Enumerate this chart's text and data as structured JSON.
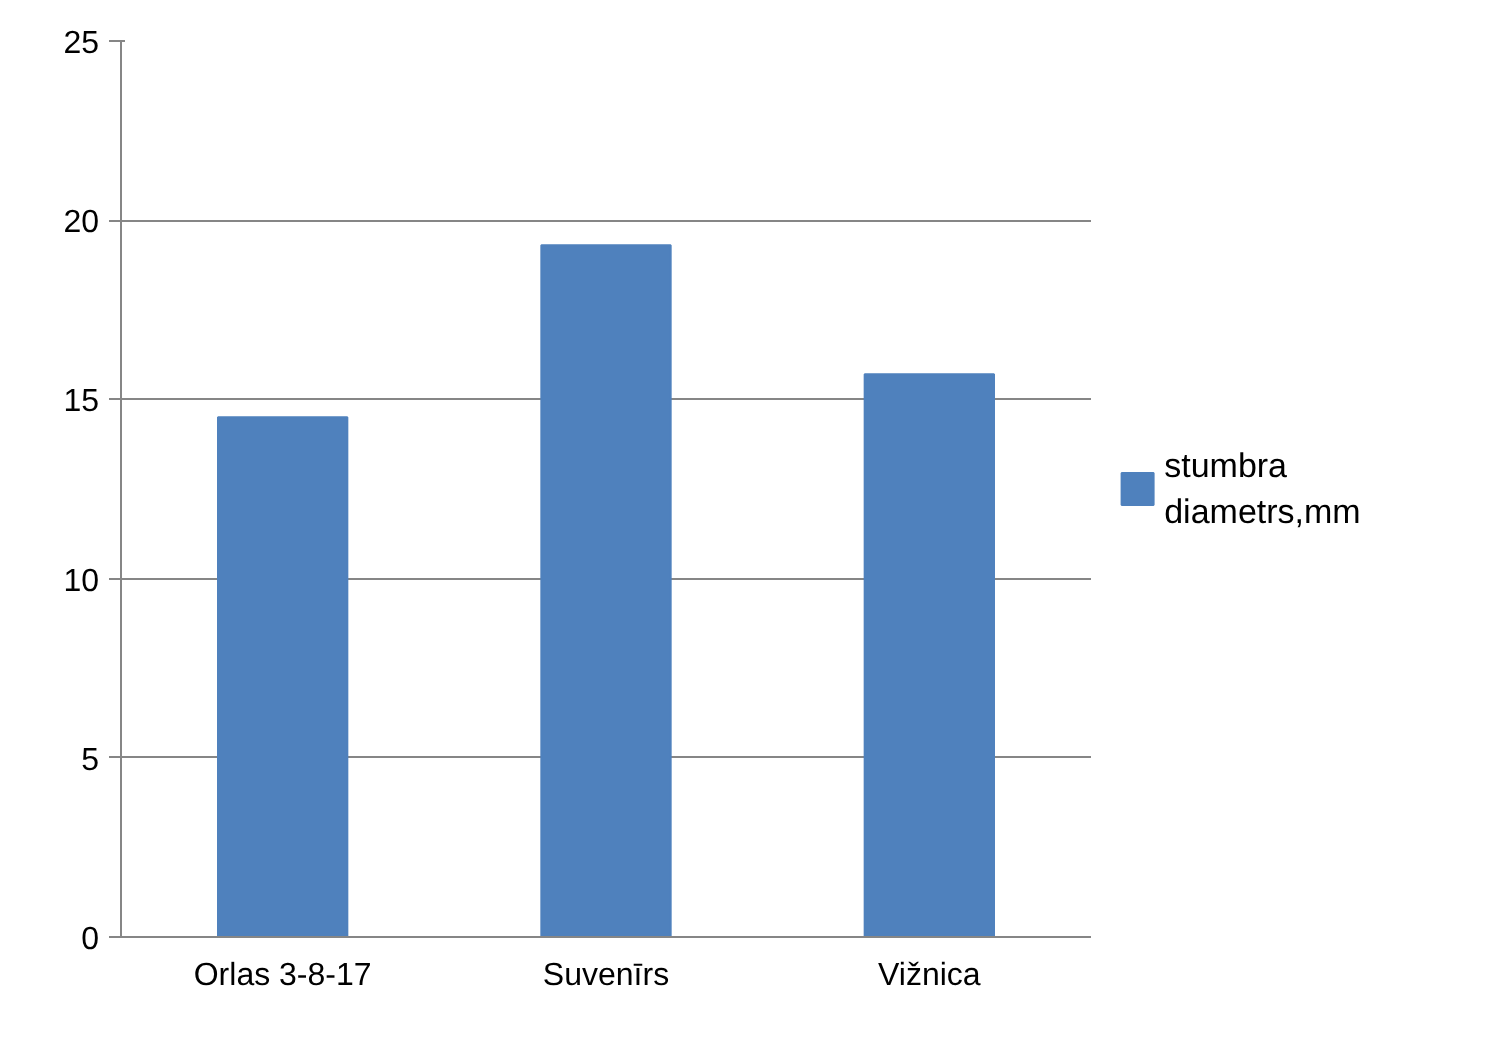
{
  "chart_data": {
    "type": "bar",
    "categories": [
      "Orlas 3-8-17",
      "Suvenīrs",
      "Vižnica"
    ],
    "series": [
      {
        "name": "stumbra diametrs,mm",
        "color": "#4f81bd",
        "values": [
          14.5,
          19.3,
          15.7
        ]
      }
    ],
    "ylim": [
      0,
      25
    ],
    "yticks": [
      0,
      5,
      10,
      15,
      20,
      25
    ],
    "grid": "y",
    "legend": "right"
  }
}
